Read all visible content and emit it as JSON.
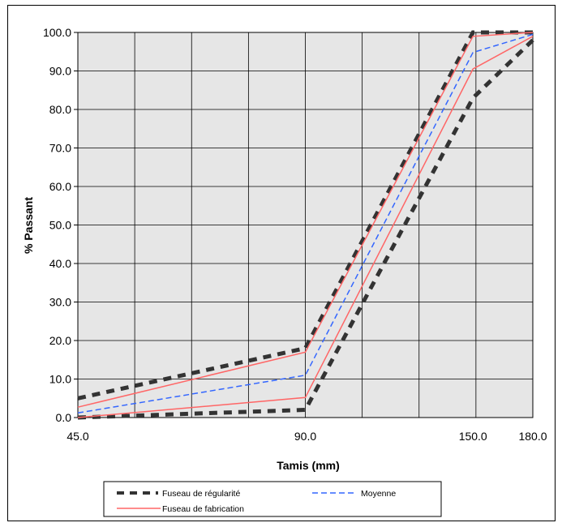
{
  "chart_data": {
    "type": "line",
    "xlabel": "Tamis (mm)",
    "ylabel": "% Passant",
    "ylim": [
      0,
      100
    ],
    "y_ticks": [
      "0.0",
      "10.0",
      "20.0",
      "30.0",
      "40.0",
      "50.0",
      "60.0",
      "70.0",
      "80.0",
      "90.0",
      "100.0"
    ],
    "x_ticks": [
      "45.0",
      "90.0",
      "150.0",
      "180.0"
    ],
    "x_scale": "log",
    "grid": true,
    "background_color": "#e6e6e6",
    "legend_position": "bottom",
    "series": [
      {
        "name": "Fuseau de régularité",
        "style": "dashed-thick",
        "color": "#333333",
        "x": [
          45,
          90,
          150,
          180
        ],
        "y": [
          5,
          18,
          100,
          100
        ]
      },
      {
        "name": "",
        "style": "dashed-thick",
        "color": "#333333",
        "x": [
          45,
          90,
          150,
          180
        ],
        "y": [
          0,
          2,
          83,
          98
        ]
      },
      {
        "name": "Moyenne",
        "style": "dashed",
        "color": "#3366ff",
        "x": [
          45,
          90,
          150,
          180
        ],
        "y": [
          1.2,
          11,
          94.8,
          99.5
        ]
      },
      {
        "name": "Fuseau de fabrication",
        "style": "solid",
        "color": "#ff6666",
        "x": [
          45,
          90,
          150,
          180
        ],
        "y": [
          2.7,
          17,
          99,
          100
        ]
      },
      {
        "name": "",
        "style": "solid",
        "color": "#ff6666",
        "x": [
          45,
          90,
          150,
          180
        ],
        "y": [
          0,
          5.2,
          90.5,
          99
        ]
      }
    ]
  }
}
